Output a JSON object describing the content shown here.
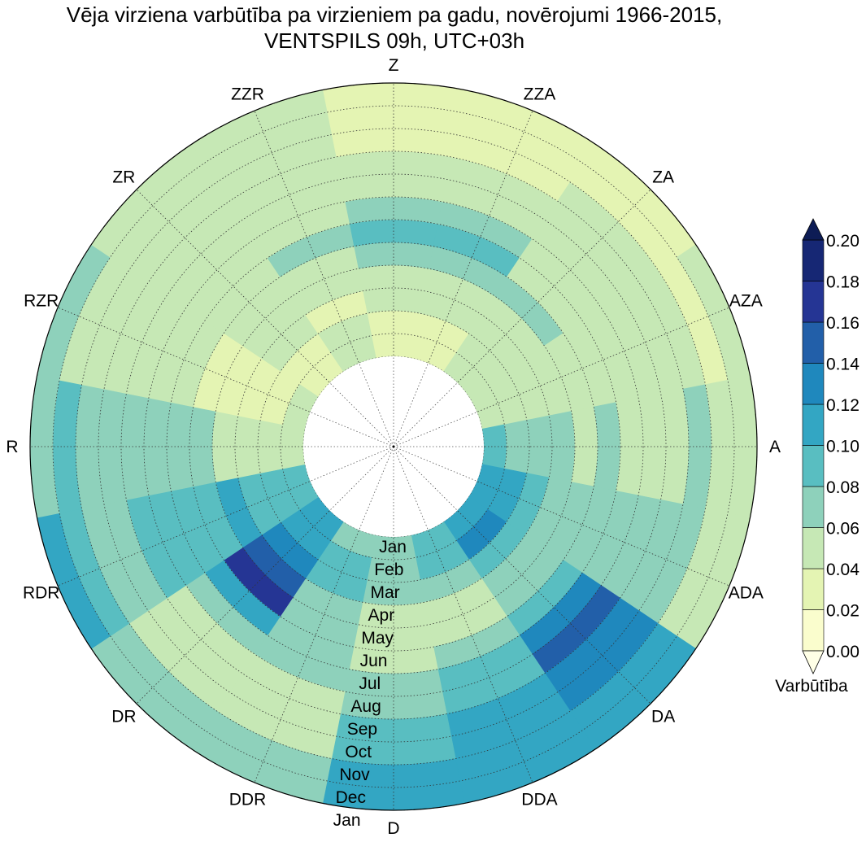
{
  "chart_data": {
    "type": "heatmap",
    "subtype": "polar-contour",
    "title_lines": [
      "Vēja virziena varbūtība pa virzieniem pa gadu, novērojumi 1966-2015,",
      "VENTSPILS 09h, UTC+03h"
    ],
    "directions": [
      "Z",
      "ZZA",
      "ZA",
      "AZA",
      "A",
      "ADA",
      "DA",
      "DDA",
      "D",
      "DDR",
      "DR",
      "RDR",
      "R",
      "RZR",
      "ZR",
      "ZZR"
    ],
    "month_labels": [
      "Jan",
      "Feb",
      "Mar",
      "Apr",
      "May",
      "Jun",
      "Jul",
      "Aug",
      "Sep",
      "Oct",
      "Nov",
      "Dec",
      "Jan"
    ],
    "months": [
      "Jan",
      "Feb",
      "Mar",
      "Apr",
      "May",
      "Jun",
      "Jul",
      "Aug",
      "Sep",
      "Oct",
      "Nov",
      "Dec"
    ],
    "values": [
      [
        0.03,
        0.03,
        0.04,
        0.05,
        0.07,
        0.09,
        0.07,
        0.05,
        0.04,
        0.03,
        0.03,
        0.03
      ],
      [
        0.03,
        0.03,
        0.04,
        0.05,
        0.07,
        0.08,
        0.06,
        0.05,
        0.04,
        0.03,
        0.03,
        0.02
      ],
      [
        0.04,
        0.04,
        0.05,
        0.05,
        0.06,
        0.05,
        0.05,
        0.04,
        0.04,
        0.04,
        0.03,
        0.03
      ],
      [
        0.05,
        0.05,
        0.05,
        0.05,
        0.04,
        0.04,
        0.04,
        0.05,
        0.05,
        0.04,
        0.03,
        0.04
      ],
      [
        0.08,
        0.07,
        0.06,
        0.06,
        0.05,
        0.06,
        0.05,
        0.05,
        0.05,
        0.06,
        0.05,
        0.05
      ],
      [
        0.1,
        0.11,
        0.09,
        0.07,
        0.06,
        0.07,
        0.07,
        0.07,
        0.06,
        0.06,
        0.05,
        0.05
      ],
      [
        0.11,
        0.12,
        0.09,
        0.07,
        0.07,
        0.09,
        0.12,
        0.14,
        0.13,
        0.12,
        0.1,
        0.1
      ],
      [
        0.09,
        0.08,
        0.07,
        0.05,
        0.05,
        0.07,
        0.08,
        0.09,
        0.1,
        0.11,
        0.1,
        0.1
      ],
      [
        0.06,
        0.07,
        0.06,
        0.05,
        0.05,
        0.05,
        0.06,
        0.07,
        0.08,
        0.09,
        0.1,
        0.1
      ],
      [
        0.07,
        0.08,
        0.08,
        0.07,
        0.06,
        0.06,
        0.06,
        0.05,
        0.04,
        0.05,
        0.06,
        0.07
      ],
      [
        0.1,
        0.11,
        0.12,
        0.15,
        0.17,
        0.11,
        0.07,
        0.05,
        0.04,
        0.04,
        0.06,
        0.07
      ],
      [
        0.08,
        0.09,
        0.09,
        0.1,
        0.09,
        0.08,
        0.08,
        0.08,
        0.07,
        0.07,
        0.08,
        0.1
      ],
      [
        0.05,
        0.04,
        0.05,
        0.05,
        0.06,
        0.07,
        0.07,
        0.07,
        0.06,
        0.07,
        0.08,
        0.07
      ],
      [
        0.04,
        0.03,
        0.03,
        0.02,
        0.03,
        0.04,
        0.04,
        0.04,
        0.05,
        0.05,
        0.05,
        0.06
      ],
      [
        0.03,
        0.03,
        0.04,
        0.04,
        0.04,
        0.05,
        0.05,
        0.04,
        0.04,
        0.05,
        0.05,
        0.05
      ],
      [
        0.04,
        0.04,
        0.03,
        0.04,
        0.05,
        0.06,
        0.05,
        0.04,
        0.04,
        0.04,
        0.04,
        0.04
      ]
    ],
    "colorbar": {
      "label": "Varbūtība",
      "ticks": [
        "0.00",
        "0.02",
        "0.04",
        "0.06",
        "0.08",
        "0.10",
        "0.12",
        "0.14",
        "0.16",
        "0.18",
        "0.20"
      ],
      "levels": [
        0,
        0.02,
        0.04,
        0.06,
        0.08,
        0.1,
        0.12,
        0.14,
        0.16,
        0.18,
        0.2
      ],
      "colors": [
        "#fafdcd",
        "#e4f4b3",
        "#c6e8b5",
        "#8ed1bb",
        "#59bec1",
        "#33a6c3",
        "#1f88bd",
        "#225fa9",
        "#253594",
        "#162774"
      ],
      "extend_low_color": "#ffffe6",
      "extend_high_color": "#0d1c55"
    }
  }
}
